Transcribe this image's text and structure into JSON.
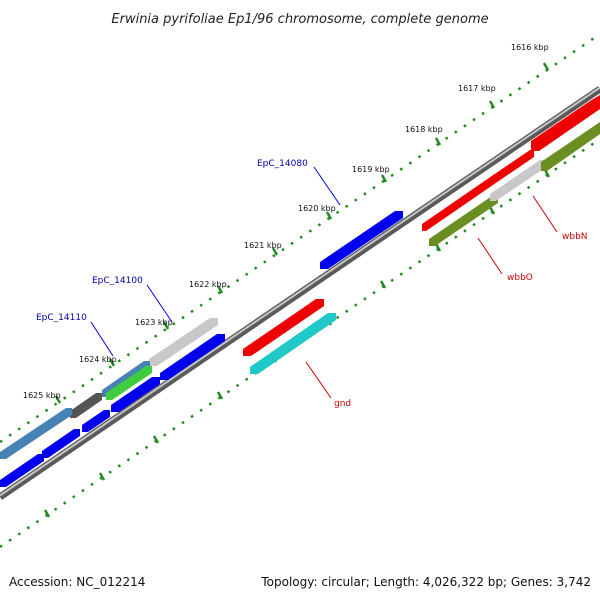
{
  "title": "Erwinia pyrifoliae Ep1/96 chromosome, complete genome",
  "footer": {
    "accession": "Accession: NC_012214",
    "topology": "Topology: circular; Length: 4,026,322 bp; Genes: 3,742"
  },
  "kbp_labels": [
    "1616 kbp",
    "1617 kbp",
    "1618 kbp",
    "1619 kbp",
    "1620 kbp",
    "1621 kbp",
    "1622 kbp",
    "1623 kbp",
    "1624 kbp",
    "1625 kbp"
  ],
  "locus_labels": [
    {
      "name": "epc-14080-label",
      "text": "EpC_14080"
    },
    {
      "name": "epc-14100-label",
      "text": "EpC_14100"
    },
    {
      "name": "epc-14110-label",
      "text": "EpC_14110"
    }
  ],
  "gene_labels": [
    {
      "name": "wbbn-label",
      "text": "wbbN"
    },
    {
      "name": "wbbo-label",
      "text": "wbbO"
    },
    {
      "name": "gnd-label",
      "text": "gnd"
    }
  ],
  "colors": {
    "backbone": "#7a7a7a",
    "tick": "#228B22",
    "blue": "#0000ee",
    "red": "#ee0000",
    "grey": "#c8c8c8",
    "cyan": "#20c8c8",
    "olive": "#6b8e23",
    "green": "#40cc40",
    "steel": "#4682b4",
    "dark-grey": "#555555",
    "locus-label": "#0000b0",
    "gene-label": "#cc0000"
  }
}
